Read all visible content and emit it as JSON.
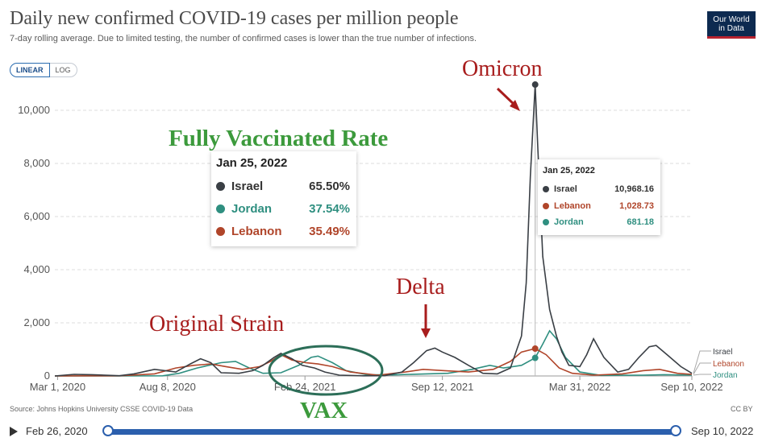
{
  "title": "Daily new confirmed COVID-19 cases per million people",
  "subtitle": "7-day rolling average. Due to limited testing, the number of confirmed cases is lower than the true number of infections.",
  "logo": {
    "line1": "Our World",
    "line2": "in Data"
  },
  "scale_toggle": {
    "linear": "LINEAR",
    "log": "LOG",
    "selected": "LINEAR"
  },
  "colors": {
    "Israel": "#3a3f45",
    "Lebanon": "#b0452a",
    "Jordan": "#2f8f80",
    "annotation_red": "#a81d1d",
    "annotation_green": "#3c9a3c",
    "timeline": "#2b5fad"
  },
  "annotations": {
    "omicron": "Omicron",
    "delta": "Delta",
    "original": "Original Strain",
    "vaccinated_title": "Fully Vaccinated Rate",
    "vax": "VAX"
  },
  "vaccination_box": {
    "date": "Jan 25, 2022",
    "rows": [
      {
        "country": "Israel",
        "value": "65.50%",
        "color": "#3a3f45"
      },
      {
        "country": "Jordan",
        "value": "37.54%",
        "color": "#2f8f80"
      },
      {
        "country": "Lebanon",
        "value": "35.49%",
        "color": "#b0452a"
      }
    ]
  },
  "tooltip": {
    "date": "Jan 25, 2022",
    "rows": [
      {
        "country": "Israel",
        "value": "10,968.16",
        "color": "#3a3f45"
      },
      {
        "country": "Lebanon",
        "value": "1,028.73",
        "color": "#b0452a"
      },
      {
        "country": "Jordan",
        "value": "681.18",
        "color": "#2f8f80"
      }
    ]
  },
  "source": "Source: Johns Hopkins University CSSE COVID-19 Data",
  "license": "CC BY",
  "timeline": {
    "start": "Feb 26, 2020",
    "end": "Sep 10, 2022"
  },
  "chart_data": {
    "type": "line",
    "title": "Daily new confirmed COVID-19 cases per million people",
    "y_ticks": [
      0,
      2000,
      4000,
      6000,
      8000,
      10000
    ],
    "y_tick_labels": [
      "0",
      "2,000",
      "4,000",
      "6,000",
      "8,000",
      "10,000"
    ],
    "ylim": [
      0,
      11000
    ],
    "xlim": [
      "2020-02-26",
      "2022-09-10"
    ],
    "x_tick_labels": [
      {
        "date": "2020-03-01",
        "label": "Mar 1, 2020"
      },
      {
        "date": "2020-08-08",
        "label": "Aug 8, 2020"
      },
      {
        "date": "2021-02-24",
        "label": "Feb 24, 2021"
      },
      {
        "date": "2021-09-12",
        "label": "Sep 12, 2021"
      },
      {
        "date": "2022-03-31",
        "label": "Mar 31, 2022"
      },
      {
        "date": "2022-09-10",
        "label": "Sep 10, 2022"
      }
    ],
    "grid": true,
    "scale": "linear",
    "highlight_date": "2022-01-25",
    "series": [
      {
        "name": "Israel",
        "color": "#3a3f45",
        "points": [
          [
            "2020-02-26",
            0
          ],
          [
            "2020-03-25",
            60
          ],
          [
            "2020-04-20",
            50
          ],
          [
            "2020-05-30",
            10
          ],
          [
            "2020-06-20",
            80
          ],
          [
            "2020-07-20",
            250
          ],
          [
            "2020-08-20",
            150
          ],
          [
            "2020-09-10",
            450
          ],
          [
            "2020-09-25",
            650
          ],
          [
            "2020-10-10",
            500
          ],
          [
            "2020-10-25",
            120
          ],
          [
            "2020-11-20",
            100
          ],
          [
            "2020-12-10",
            200
          ],
          [
            "2020-12-25",
            400
          ],
          [
            "2021-01-10",
            700
          ],
          [
            "2021-01-20",
            850
          ],
          [
            "2021-02-05",
            650
          ],
          [
            "2021-02-20",
            400
          ],
          [
            "2021-03-10",
            300
          ],
          [
            "2021-03-25",
            150
          ],
          [
            "2021-04-15",
            30
          ],
          [
            "2021-05-20",
            5
          ],
          [
            "2021-06-20",
            10
          ],
          [
            "2021-07-15",
            150
          ],
          [
            "2021-08-01",
            500
          ],
          [
            "2021-08-20",
            950
          ],
          [
            "2021-09-01",
            1050
          ],
          [
            "2021-09-12",
            900
          ],
          [
            "2021-09-30",
            700
          ],
          [
            "2021-10-20",
            400
          ],
          [
            "2021-11-10",
            100
          ],
          [
            "2021-12-01",
            80
          ],
          [
            "2021-12-20",
            300
          ],
          [
            "2022-01-05",
            1500
          ],
          [
            "2022-01-12",
            3500
          ],
          [
            "2022-01-18",
            7500
          ],
          [
            "2022-01-25",
            10968
          ],
          [
            "2022-01-29",
            8500
          ],
          [
            "2022-02-05",
            4500
          ],
          [
            "2022-02-15",
            2500
          ],
          [
            "2022-02-25",
            1500
          ],
          [
            "2022-03-05",
            900
          ],
          [
            "2022-03-15",
            400
          ],
          [
            "2022-03-31",
            350
          ],
          [
            "2022-04-10",
            800
          ],
          [
            "2022-04-20",
            1400
          ],
          [
            "2022-05-05",
            700
          ],
          [
            "2022-05-25",
            150
          ],
          [
            "2022-06-10",
            250
          ],
          [
            "2022-06-25",
            700
          ],
          [
            "2022-07-10",
            1100
          ],
          [
            "2022-07-20",
            1150
          ],
          [
            "2022-08-05",
            800
          ],
          [
            "2022-08-25",
            350
          ],
          [
            "2022-09-10",
            100
          ]
        ]
      },
      {
        "name": "Lebanon",
        "color": "#b0452a",
        "points": [
          [
            "2020-02-26",
            0
          ],
          [
            "2020-05-30",
            5
          ],
          [
            "2020-07-20",
            80
          ],
          [
            "2020-08-20",
            300
          ],
          [
            "2020-09-15",
            400
          ],
          [
            "2020-10-10",
            450
          ],
          [
            "2020-11-01",
            350
          ],
          [
            "2020-11-25",
            250
          ],
          [
            "2020-12-20",
            350
          ],
          [
            "2021-01-05",
            550
          ],
          [
            "2021-01-20",
            800
          ],
          [
            "2021-02-05",
            600
          ],
          [
            "2021-02-25",
            500
          ],
          [
            "2021-03-15",
            450
          ],
          [
            "2021-04-05",
            350
          ],
          [
            "2021-05-01",
            150
          ],
          [
            "2021-06-10",
            30
          ],
          [
            "2021-07-20",
            150
          ],
          [
            "2021-08-15",
            250
          ],
          [
            "2021-09-15",
            200
          ],
          [
            "2021-10-20",
            150
          ],
          [
            "2021-11-25",
            250
          ],
          [
            "2021-12-20",
            550
          ],
          [
            "2022-01-05",
            900
          ],
          [
            "2022-01-25",
            1029
          ],
          [
            "2022-02-10",
            800
          ],
          [
            "2022-03-01",
            300
          ],
          [
            "2022-03-20",
            100
          ],
          [
            "2022-04-20",
            30
          ],
          [
            "2022-06-01",
            80
          ],
          [
            "2022-07-01",
            200
          ],
          [
            "2022-07-25",
            250
          ],
          [
            "2022-08-20",
            100
          ],
          [
            "2022-09-10",
            60
          ]
        ]
      },
      {
        "name": "Jordan",
        "color": "#2f8f80",
        "points": [
          [
            "2020-02-26",
            0
          ],
          [
            "2020-08-01",
            5
          ],
          [
            "2020-08-25",
            100
          ],
          [
            "2020-09-20",
            300
          ],
          [
            "2020-10-25",
            500
          ],
          [
            "2020-11-15",
            550
          ],
          [
            "2020-12-05",
            300
          ],
          [
            "2020-12-25",
            100
          ],
          [
            "2021-01-20",
            120
          ],
          [
            "2021-02-15",
            400
          ],
          [
            "2021-03-05",
            700
          ],
          [
            "2021-03-15",
            750
          ],
          [
            "2021-04-05",
            500
          ],
          [
            "2021-04-25",
            200
          ],
          [
            "2021-05-25",
            50
          ],
          [
            "2021-07-01",
            40
          ],
          [
            "2021-08-20",
            80
          ],
          [
            "2021-09-20",
            100
          ],
          [
            "2021-10-25",
            250
          ],
          [
            "2021-11-20",
            400
          ],
          [
            "2021-12-10",
            300
          ],
          [
            "2022-01-05",
            400
          ],
          [
            "2022-01-25",
            681
          ],
          [
            "2022-02-05",
            1200
          ],
          [
            "2022-02-15",
            1700
          ],
          [
            "2022-02-25",
            1400
          ],
          [
            "2022-03-10",
            700
          ],
          [
            "2022-03-31",
            150
          ],
          [
            "2022-05-01",
            20
          ],
          [
            "2022-07-01",
            30
          ],
          [
            "2022-08-01",
            50
          ],
          [
            "2022-09-10",
            30
          ]
        ]
      }
    ]
  }
}
